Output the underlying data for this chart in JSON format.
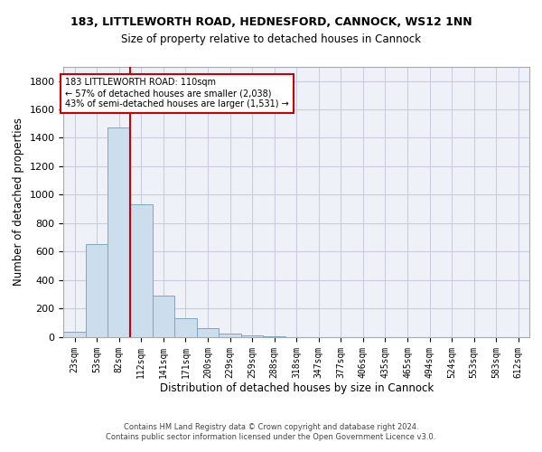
{
  "title1": "183, LITTLEWORTH ROAD, HEDNESFORD, CANNOCK, WS12 1NN",
  "title2": "Size of property relative to detached houses in Cannock",
  "xlabel": "Distribution of detached houses by size in Cannock",
  "ylabel": "Number of detached properties",
  "bar_color": "#ccdded",
  "bar_edge_color": "#7aaabb",
  "grid_color": "#ccccdd",
  "bg_color": "#eef2f8",
  "annotation_box_color": "#cc0000",
  "vline_color": "#cc0000",
  "annotation_line1": "183 LITTLEWORTH ROAD: 110sqm",
  "annotation_line2": "← 57% of detached houses are smaller (2,038)",
  "annotation_line3": "43% of semi-detached houses are larger (1,531) →",
  "footer1": "Contains HM Land Registry data © Crown copyright and database right 2024.",
  "footer2": "Contains public sector information licensed under the Open Government Licence v3.0.",
  "bin_labels": [
    "23sqm",
    "53sqm",
    "82sqm",
    "112sqm",
    "141sqm",
    "171sqm",
    "200sqm",
    "229sqm",
    "259sqm",
    "288sqm",
    "318sqm",
    "347sqm",
    "377sqm",
    "406sqm",
    "435sqm",
    "465sqm",
    "494sqm",
    "524sqm",
    "553sqm",
    "583sqm",
    "612sqm"
  ],
  "bar_values": [
    38,
    650,
    1470,
    935,
    290,
    128,
    62,
    22,
    12,
    2,
    0,
    0,
    0,
    0,
    0,
    0,
    0,
    0,
    0,
    0,
    0
  ],
  "ylim": [
    0,
    1900
  ],
  "vline_x": 2.5,
  "num_bins": 21,
  "yticks": [
    0,
    200,
    400,
    600,
    800,
    1000,
    1200,
    1400,
    1600,
    1800
  ]
}
